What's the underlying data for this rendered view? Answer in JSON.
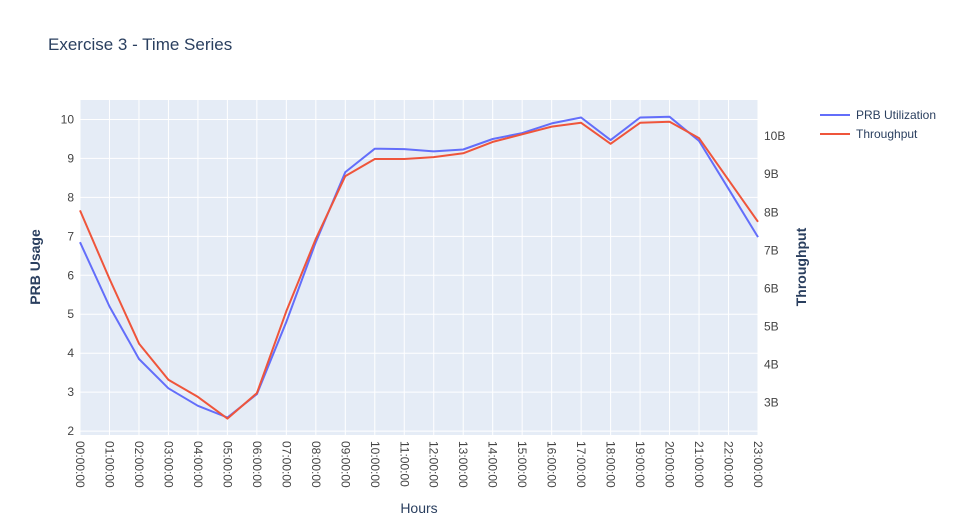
{
  "chart_data": {
    "type": "line",
    "title": "Exercise 3 - Time Series",
    "xlabel": "Hours",
    "ylabel": "PRB Usage",
    "y2label": "Throughput",
    "categories": [
      "00:00:00",
      "01:00:00",
      "02:00:00",
      "03:00:00",
      "04:00:00",
      "05:00:00",
      "06:00:00",
      "07:00:00",
      "08:00:00",
      "09:00:00",
      "10:00:00",
      "11:00:00",
      "12:00:00",
      "13:00:00",
      "14:00:00",
      "15:00:00",
      "16:00:00",
      "17:00:00",
      "18:00:00",
      "19:00:00",
      "20:00:00",
      "21:00:00",
      "22:00:00",
      "23:00:00"
    ],
    "ylim": [
      1.9,
      10.5
    ],
    "y2lim": [
      2.15,
      10.95
    ],
    "yticks": [
      2,
      3,
      4,
      5,
      6,
      7,
      8,
      9,
      10
    ],
    "y2ticks": [
      3,
      4,
      5,
      6,
      7,
      8,
      9,
      10
    ],
    "y2tick_labels": [
      "3B",
      "4B",
      "5B",
      "6B",
      "7B",
      "8B",
      "9B",
      "10B"
    ],
    "grid": true,
    "legend": "top-right",
    "series": [
      {
        "name": "PRB Utilization",
        "axis": "left",
        "color": "#636efa",
        "values": [
          6.85,
          5.2,
          3.85,
          3.1,
          2.65,
          2.35,
          2.95,
          4.8,
          6.85,
          8.65,
          9.25,
          9.24,
          9.18,
          9.23,
          9.5,
          9.65,
          9.9,
          10.05,
          9.47,
          10.05,
          10.07,
          9.45,
          8.22,
          6.98
        ]
      },
      {
        "name": "Throughput",
        "axis": "right",
        "color": "#ef553b",
        "values": [
          8.05,
          6.25,
          4.55,
          3.6,
          3.15,
          2.58,
          3.25,
          5.4,
          7.3,
          8.95,
          9.4,
          9.4,
          9.45,
          9.55,
          9.85,
          10.05,
          10.25,
          10.35,
          9.8,
          10.35,
          10.38,
          9.95,
          8.85,
          7.75
        ]
      }
    ]
  }
}
